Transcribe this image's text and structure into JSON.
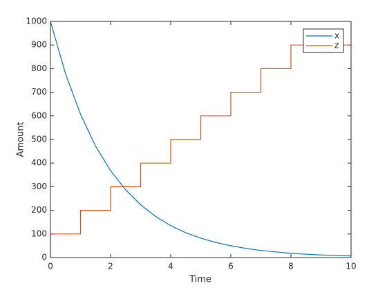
{
  "chart_data": {
    "type": "line",
    "xlabel": "Time",
    "ylabel": "Amount",
    "xlim": [
      0,
      10
    ],
    "xticks": [
      0,
      2,
      4,
      6,
      8,
      10
    ],
    "ylim": [
      0,
      1000
    ],
    "yticks": [
      0,
      100,
      200,
      300,
      400,
      500,
      600,
      700,
      800,
      900,
      1000
    ],
    "grid": false,
    "legend": "top-right",
    "series": [
      {
        "name": "x",
        "color": "#0072bd",
        "x": [
          0,
          0.5,
          1,
          1.5,
          2,
          2.5,
          3,
          3.5,
          4,
          4.5,
          5,
          5.5,
          6,
          6.5,
          7,
          7.5,
          8,
          8.5,
          9,
          9.5,
          10
        ],
        "values": [
          1000,
          779,
          607,
          472,
          368,
          287,
          223,
          174,
          135,
          105,
          82,
          64,
          50,
          39,
          30,
          24,
          18,
          14,
          11,
          9,
          7
        ]
      },
      {
        "name": "z",
        "color": "#d95319",
        "x": [
          0,
          0,
          1,
          1,
          2,
          2,
          3,
          3,
          4,
          4,
          5,
          5,
          6,
          6,
          7,
          7,
          8,
          8,
          10
        ],
        "values": [
          0,
          100,
          100,
          200,
          200,
          300,
          300,
          400,
          400,
          500,
          500,
          600,
          600,
          700,
          700,
          800,
          800,
          900,
          900
        ]
      }
    ]
  }
}
